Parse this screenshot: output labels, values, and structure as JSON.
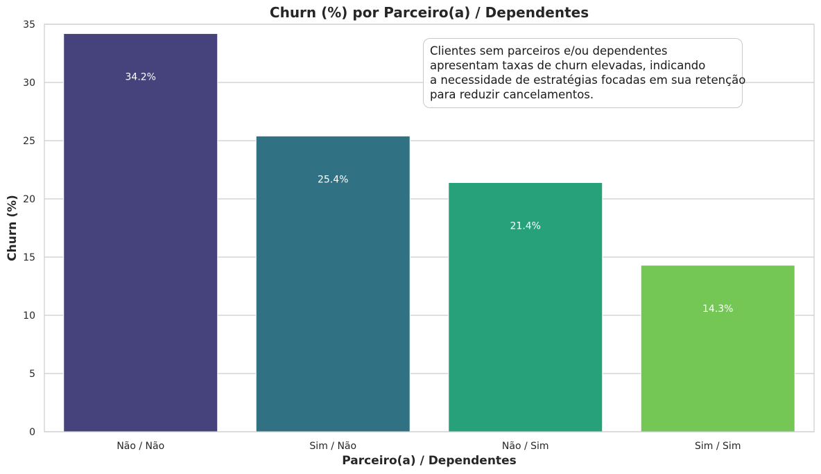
{
  "chart_data": {
    "type": "bar",
    "title": "Churn (%) por Parceiro(a) / Dependentes",
    "xlabel": "Parceiro(a) / Dependentes",
    "ylabel": "Churn (%)",
    "categories": [
      "Não / Não",
      "Sim / Não",
      "Não / Sim",
      "Sim / Sim"
    ],
    "values": [
      34.2,
      25.4,
      21.4,
      14.3
    ],
    "data_labels": [
      "34.2%",
      "25.4%",
      "21.4%",
      "14.3%"
    ],
    "colors": [
      "#46437c",
      "#307283",
      "#26a17a",
      "#74c754"
    ],
    "ylim": [
      0,
      35
    ],
    "yticks": [
      0,
      5,
      10,
      15,
      20,
      25,
      30,
      35
    ],
    "ytick_labels": [
      "0",
      "5",
      "10",
      "15",
      "20",
      "25",
      "30",
      "35"
    ],
    "grid": "horizontal",
    "legend": "none",
    "annotation": {
      "lines": [
        "Clientes sem parceiros e/ou dependentes",
        "apresentam taxas de churn elevadas, indicando",
        "a necessidade de estratégias focadas em sua retenção",
        "para reduzir cancelamentos."
      ],
      "placement": "top-right"
    }
  }
}
